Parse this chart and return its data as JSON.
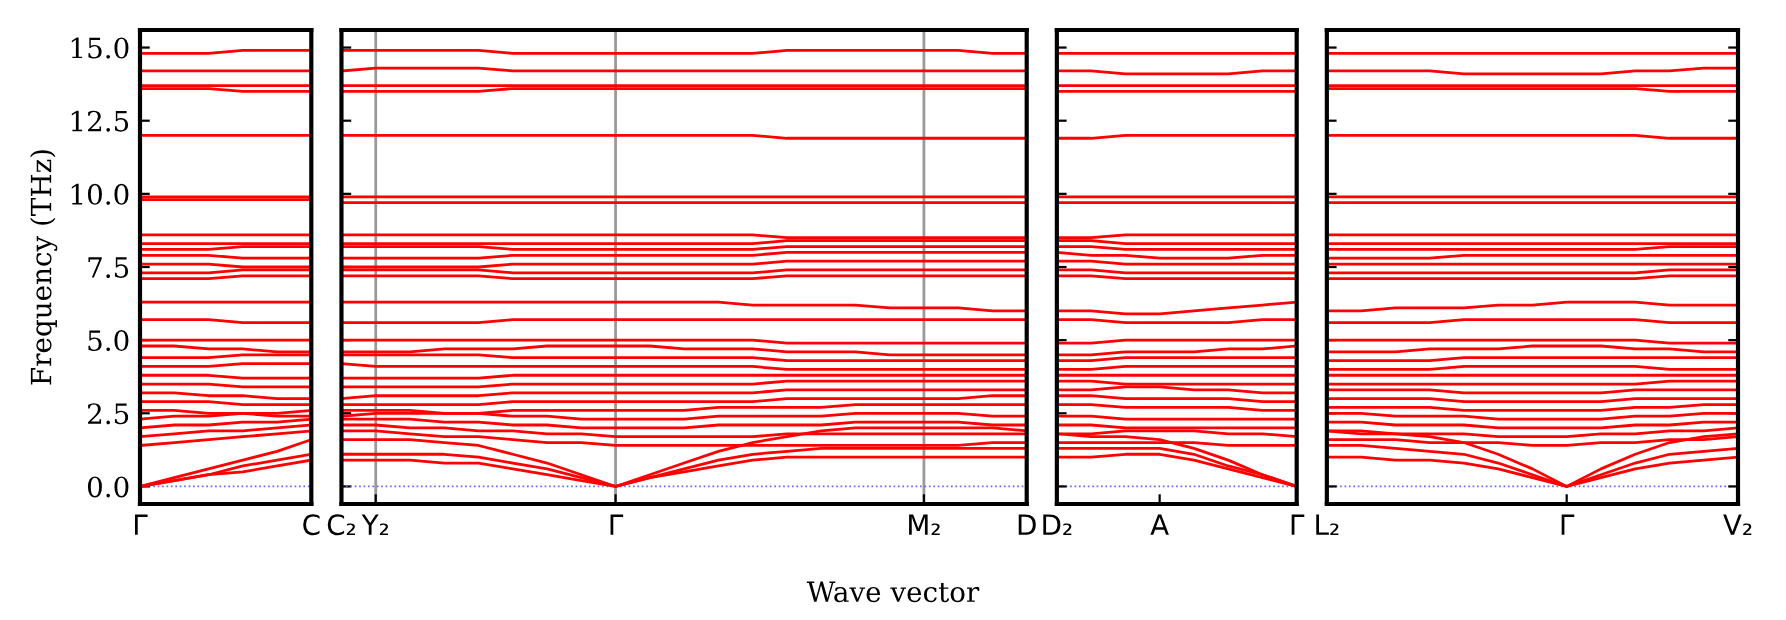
{
  "chart_data": [
    {
      "type": "line",
      "ylabel": "Frequency (THz)",
      "color": "#ff0000",
      "categories": [
        "Γ",
        null,
        null,
        null,
        null,
        "C"
      ],
      "ylim": [
        -0.6,
        15.6
      ],
      "yticks": [
        {
          "value": 0,
          "label": "0.0"
        },
        {
          "value": 2.5,
          "label": "2.5"
        },
        {
          "value": 5,
          "label": "5.0"
        },
        {
          "value": 7.5,
          "label": "7.5"
        },
        {
          "value": 10,
          "label": "10.0"
        },
        {
          "value": 12.5,
          "label": "12.5"
        },
        {
          "value": 15,
          "label": "15.0"
        }
      ],
      "ref_lines": [
        {
          "axis": "y",
          "value": 0,
          "color": "#6666ff",
          "line_style": "dotted"
        }
      ],
      "series": [
        {
          "values": [
            0,
            0.2,
            0.4,
            0.5,
            0.7,
            0.9
          ]
        },
        {
          "values": [
            0,
            0.2,
            0.4,
            0.7,
            0.9,
            1.1
          ]
        },
        {
          "values": [
            0,
            0.3,
            0.6,
            0.9,
            1.2,
            1.6
          ]
        },
        {
          "values": [
            1.4,
            1.5,
            1.6,
            1.7,
            1.8,
            1.9
          ]
        },
        {
          "values": [
            1.7,
            1.8,
            1.9,
            1.9,
            2.0,
            2.1
          ]
        },
        {
          "values": [
            2.0,
            2.1,
            2.1,
            2.2,
            2.2,
            2.3
          ]
        },
        {
          "values": [
            2.3,
            2.4,
            2.4,
            2.5,
            2.5,
            2.6
          ]
        },
        {
          "values": [
            2.6,
            2.6,
            2.5,
            2.5,
            2.4,
            2.4
          ]
        },
        {
          "values": [
            2.9,
            2.9,
            2.9,
            2.8,
            2.8,
            2.8
          ]
        },
        {
          "values": [
            3.2,
            3.2,
            3.1,
            3.1,
            3.0,
            3.0
          ]
        },
        {
          "values": [
            3.5,
            3.5,
            3.5,
            3.4,
            3.4,
            3.4
          ]
        },
        {
          "values": [
            3.8,
            3.8,
            3.8,
            3.7,
            3.7,
            3.7
          ]
        },
        {
          "values": [
            4.1,
            4.1,
            4.1,
            4.2,
            4.2,
            4.2
          ]
        },
        {
          "values": [
            4.4,
            4.4,
            4.4,
            4.5,
            4.5,
            4.5
          ]
        },
        {
          "values": [
            4.8,
            4.8,
            4.7,
            4.7,
            4.6,
            4.6
          ]
        },
        {
          "values": [
            5.0,
            5.0,
            5.0,
            5.0,
            5.0,
            5.0
          ]
        },
        {
          "values": [
            5.7,
            5.7,
            5.7,
            5.6,
            5.6,
            5.6
          ]
        },
        {
          "values": [
            6.3,
            6.3,
            6.3,
            6.3,
            6.3,
            6.3
          ]
        },
        {
          "values": [
            7.1,
            7.1,
            7.1,
            7.2,
            7.2,
            7.2
          ]
        },
        {
          "values": [
            7.3,
            7.3,
            7.3,
            7.4,
            7.4,
            7.4
          ]
        },
        {
          "values": [
            7.6,
            7.6,
            7.6,
            7.5,
            7.5,
            7.5
          ]
        },
        {
          "values": [
            7.9,
            7.9,
            7.9,
            7.8,
            7.8,
            7.8
          ]
        },
        {
          "values": [
            8.1,
            8.1,
            8.1,
            8.2,
            8.2,
            8.2
          ]
        },
        {
          "values": [
            8.3,
            8.3,
            8.3,
            8.3,
            8.3,
            8.3
          ]
        },
        {
          "values": [
            8.6,
            8.6,
            8.6,
            8.6,
            8.6,
            8.6
          ]
        },
        {
          "values": [
            9.8,
            9.8,
            9.8,
            9.8,
            9.8,
            9.8
          ]
        },
        {
          "values": [
            9.9,
            9.9,
            9.9,
            9.9,
            9.9,
            9.9
          ]
        },
        {
          "values": [
            12.0,
            12.0,
            12.0,
            12.0,
            12.0,
            12.0
          ]
        },
        {
          "values": [
            13.6,
            13.6,
            13.6,
            13.5,
            13.5,
            13.5
          ]
        },
        {
          "values": [
            13.7,
            13.7,
            13.7,
            13.7,
            13.7,
            13.7
          ]
        },
        {
          "values": [
            14.2,
            14.2,
            14.2,
            14.2,
            14.2,
            14.2
          ]
        },
        {
          "values": [
            14.8,
            14.8,
            14.8,
            14.9,
            14.9,
            14.9
          ]
        }
      ]
    },
    {
      "type": "line",
      "xlabel": "Wave vector",
      "color": "#ff0000",
      "grid": "x",
      "tick_labels": "x",
      "categories": [
        "C₂",
        "Y₂",
        null,
        null,
        null,
        null,
        null,
        null,
        "Γ",
        null,
        null,
        null,
        null,
        null,
        null,
        null,
        null,
        "M₂",
        null,
        null,
        "D"
      ],
      "ylim": [
        -0.6,
        15.6
      ],
      "ref_lines": [
        {
          "axis": "y",
          "value": 0,
          "color": "#6666ff",
          "line_style": "dotted"
        }
      ],
      "series": [
        {
          "values": [
            0.9,
            0.9,
            0.9,
            0.8,
            0.8,
            0.6,
            0.4,
            0.2,
            0,
            0.3,
            0.5,
            0.7,
            0.9,
            1.0,
            1.0,
            1.0,
            1.0,
            1.0,
            1.0,
            1.0,
            1.0
          ]
        },
        {
          "values": [
            1.1,
            1.1,
            1.1,
            1.1,
            1.0,
            0.8,
            0.6,
            0.3,
            0,
            0.3,
            0.6,
            0.9,
            1.1,
            1.2,
            1.3,
            1.3,
            1.3,
            1.3,
            1.3,
            1.3,
            1.3
          ]
        },
        {
          "values": [
            1.6,
            1.6,
            1.6,
            1.5,
            1.4,
            1.1,
            0.8,
            0.4,
            0,
            0.4,
            0.8,
            1.2,
            1.5,
            1.7,
            1.9,
            2.0,
            2.0,
            2.0,
            2.0,
            2.0,
            1.9
          ]
        },
        {
          "values": [
            1.9,
            1.9,
            1.8,
            1.7,
            1.7,
            1.6,
            1.5,
            1.5,
            1.4,
            1.4,
            1.4,
            1.4,
            1.4,
            1.4,
            1.4,
            1.4,
            1.4,
            1.4,
            1.4,
            1.5,
            1.5
          ]
        },
        {
          "values": [
            2.1,
            2.1,
            2.0,
            2.0,
            1.9,
            1.9,
            1.8,
            1.8,
            1.7,
            1.7,
            1.7,
            1.7,
            1.7,
            1.8,
            1.8,
            1.8,
            1.8,
            1.8,
            1.8,
            1.8,
            1.8
          ]
        },
        {
          "values": [
            2.3,
            2.3,
            2.3,
            2.2,
            2.2,
            2.1,
            2.1,
            2.0,
            2.0,
            2.0,
            2.0,
            2.1,
            2.1,
            2.1,
            2.1,
            2.2,
            2.2,
            2.2,
            2.2,
            2.1,
            2.1
          ]
        },
        {
          "values": [
            2.6,
            2.6,
            2.6,
            2.5,
            2.5,
            2.4,
            2.4,
            2.3,
            2.3,
            2.3,
            2.3,
            2.4,
            2.4,
            2.4,
            2.4,
            2.5,
            2.5,
            2.5,
            2.5,
            2.4,
            2.4
          ]
        },
        {
          "values": [
            2.4,
            2.5,
            2.5,
            2.5,
            2.5,
            2.6,
            2.6,
            2.6,
            2.6,
            2.6,
            2.6,
            2.7,
            2.7,
            2.7,
            2.7,
            2.8,
            2.8,
            2.8,
            2.8,
            2.8,
            2.8
          ]
        },
        {
          "values": [
            2.8,
            2.8,
            2.8,
            2.8,
            2.8,
            2.9,
            2.9,
            2.9,
            2.9,
            2.9,
            2.9,
            2.9,
            2.9,
            3.0,
            3.0,
            3.0,
            3.0,
            3.0,
            3.0,
            3.1,
            3.1
          ]
        },
        {
          "values": [
            3.0,
            3.1,
            3.1,
            3.1,
            3.1,
            3.2,
            3.2,
            3.2,
            3.2,
            3.2,
            3.2,
            3.2,
            3.2,
            3.3,
            3.3,
            3.3,
            3.3,
            3.3,
            3.3,
            3.3,
            3.3
          ]
        },
        {
          "values": [
            3.4,
            3.4,
            3.4,
            3.4,
            3.4,
            3.5,
            3.5,
            3.5,
            3.5,
            3.5,
            3.5,
            3.5,
            3.5,
            3.6,
            3.6,
            3.6,
            3.6,
            3.6,
            3.6,
            3.6,
            3.6
          ]
        },
        {
          "values": [
            3.7,
            3.7,
            3.7,
            3.7,
            3.7,
            3.8,
            3.8,
            3.8,
            3.8,
            3.8,
            3.8,
            3.8,
            3.8,
            3.8,
            3.8,
            3.8,
            3.8,
            3.8,
            3.8,
            3.8,
            3.8
          ]
        },
        {
          "values": [
            4.2,
            4.1,
            4.1,
            4.1,
            4.1,
            4.1,
            4.1,
            4.1,
            4.1,
            4.1,
            4.1,
            4.1,
            4.1,
            4.0,
            4.0,
            4.0,
            4.0,
            4.0,
            4.0,
            4.0,
            4.0
          ]
        },
        {
          "values": [
            4.5,
            4.5,
            4.5,
            4.5,
            4.5,
            4.4,
            4.4,
            4.4,
            4.4,
            4.4,
            4.4,
            4.4,
            4.4,
            4.3,
            4.3,
            4.3,
            4.3,
            4.3,
            4.3,
            4.3,
            4.3
          ]
        },
        {
          "values": [
            4.6,
            4.6,
            4.6,
            4.7,
            4.7,
            4.7,
            4.8,
            4.8,
            4.8,
            4.8,
            4.7,
            4.7,
            4.7,
            4.6,
            4.6,
            4.6,
            4.5,
            4.5,
            4.5,
            4.5,
            4.5
          ]
        },
        {
          "values": [
            5.0,
            5.0,
            5.0,
            5.0,
            5.0,
            5.0,
            5.0,
            5.0,
            5.0,
            5.0,
            5.0,
            5.0,
            5.0,
            4.9,
            4.9,
            4.9,
            4.9,
            4.9,
            4.9,
            4.9,
            4.9
          ]
        },
        {
          "values": [
            5.6,
            5.6,
            5.6,
            5.6,
            5.6,
            5.7,
            5.7,
            5.7,
            5.7,
            5.7,
            5.7,
            5.7,
            5.7,
            5.7,
            5.7,
            5.7,
            5.7,
            5.7,
            5.7,
            5.7,
            5.7
          ]
        },
        {
          "values": [
            6.3,
            6.3,
            6.3,
            6.3,
            6.3,
            6.3,
            6.3,
            6.3,
            6.3,
            6.3,
            6.3,
            6.3,
            6.2,
            6.2,
            6.2,
            6.2,
            6.1,
            6.1,
            6.1,
            6.0,
            6.0
          ]
        },
        {
          "values": [
            7.2,
            7.2,
            7.2,
            7.2,
            7.2,
            7.1,
            7.1,
            7.1,
            7.1,
            7.1,
            7.1,
            7.1,
            7.1,
            7.2,
            7.2,
            7.2,
            7.2,
            7.2,
            7.2,
            7.2,
            7.2
          ]
        },
        {
          "values": [
            7.4,
            7.4,
            7.4,
            7.4,
            7.4,
            7.3,
            7.3,
            7.3,
            7.3,
            7.3,
            7.3,
            7.3,
            7.3,
            7.4,
            7.4,
            7.4,
            7.4,
            7.4,
            7.4,
            7.4,
            7.4
          ]
        },
        {
          "values": [
            7.5,
            7.5,
            7.5,
            7.5,
            7.5,
            7.6,
            7.6,
            7.6,
            7.6,
            7.6,
            7.6,
            7.6,
            7.6,
            7.7,
            7.7,
            7.7,
            7.7,
            7.7,
            7.7,
            7.7,
            7.7
          ]
        },
        {
          "values": [
            7.8,
            7.8,
            7.8,
            7.8,
            7.8,
            7.9,
            7.9,
            7.9,
            7.9,
            7.9,
            7.9,
            7.9,
            7.9,
            8.0,
            8.0,
            8.0,
            8.0,
            8.0,
            8.0,
            8.0,
            8.0
          ]
        },
        {
          "values": [
            8.2,
            8.2,
            8.2,
            8.2,
            8.2,
            8.1,
            8.1,
            8.1,
            8.1,
            8.1,
            8.1,
            8.1,
            8.1,
            8.2,
            8.2,
            8.2,
            8.2,
            8.2,
            8.2,
            8.2,
            8.2
          ]
        },
        {
          "values": [
            8.3,
            8.3,
            8.3,
            8.3,
            8.3,
            8.3,
            8.3,
            8.3,
            8.3,
            8.3,
            8.3,
            8.3,
            8.3,
            8.4,
            8.4,
            8.4,
            8.4,
            8.4,
            8.4,
            8.4,
            8.4
          ]
        },
        {
          "values": [
            8.6,
            8.6,
            8.6,
            8.6,
            8.6,
            8.6,
            8.6,
            8.6,
            8.6,
            8.6,
            8.6,
            8.6,
            8.6,
            8.5,
            8.5,
            8.5,
            8.5,
            8.5,
            8.5,
            8.5,
            8.5
          ]
        },
        {
          "values": [
            9.7,
            9.7,
            9.7,
            9.7,
            9.7,
            9.7,
            9.7,
            9.7,
            9.7,
            9.7,
            9.7,
            9.7,
            9.7,
            9.7,
            9.7,
            9.7,
            9.7,
            9.7,
            9.7,
            9.7,
            9.7
          ]
        },
        {
          "values": [
            9.9,
            9.9,
            9.9,
            9.9,
            9.9,
            9.9,
            9.9,
            9.9,
            9.9,
            9.9,
            9.9,
            9.9,
            9.9,
            9.9,
            9.9,
            9.9,
            9.9,
            9.9,
            9.9,
            9.9,
            9.9
          ]
        },
        {
          "values": [
            12.0,
            12.0,
            12.0,
            12.0,
            12.0,
            12.0,
            12.0,
            12.0,
            12.0,
            12.0,
            12.0,
            12.0,
            12.0,
            11.9,
            11.9,
            11.9,
            11.9,
            11.9,
            11.9,
            11.9,
            11.9
          ]
        },
        {
          "values": [
            13.5,
            13.5,
            13.5,
            13.5,
            13.5,
            13.6,
            13.6,
            13.6,
            13.6,
            13.6,
            13.6,
            13.6,
            13.6,
            13.6,
            13.6,
            13.6,
            13.6,
            13.6,
            13.6,
            13.6,
            13.6
          ]
        },
        {
          "values": [
            13.7,
            13.7,
            13.7,
            13.7,
            13.7,
            13.7,
            13.7,
            13.7,
            13.7,
            13.7,
            13.7,
            13.7,
            13.7,
            13.7,
            13.7,
            13.7,
            13.7,
            13.7,
            13.7,
            13.7,
            13.7
          ]
        },
        {
          "values": [
            14.2,
            14.3,
            14.3,
            14.3,
            14.3,
            14.2,
            14.2,
            14.2,
            14.2,
            14.2,
            14.2,
            14.2,
            14.2,
            14.2,
            14.2,
            14.2,
            14.2,
            14.2,
            14.2,
            14.2,
            14.2
          ]
        },
        {
          "values": [
            14.9,
            14.9,
            14.9,
            14.9,
            14.9,
            14.8,
            14.8,
            14.8,
            14.8,
            14.8,
            14.8,
            14.8,
            14.8,
            14.9,
            14.9,
            14.9,
            14.9,
            14.9,
            14.9,
            14.8,
            14.8
          ]
        }
      ]
    },
    {
      "type": "line",
      "color": "#ff0000",
      "tick_labels": "x",
      "categories": [
        "D₂",
        null,
        null,
        "A",
        null,
        null,
        null,
        "Γ"
      ],
      "ylim": [
        -0.6,
        15.6
      ],
      "ref_lines": [
        {
          "axis": "y",
          "value": 0,
          "color": "#6666ff",
          "line_style": "dotted"
        }
      ],
      "series": [
        {
          "values": [
            1.0,
            1.0,
            1.1,
            1.1,
            0.9,
            0.6,
            0.3,
            0
          ]
        },
        {
          "values": [
            1.3,
            1.3,
            1.3,
            1.3,
            1.1,
            0.7,
            0.4,
            0
          ]
        },
        {
          "values": [
            1.8,
            1.7,
            1.7,
            1.6,
            1.3,
            0.9,
            0.4,
            0
          ]
        },
        {
          "values": [
            1.5,
            1.5,
            1.5,
            1.5,
            1.5,
            1.4,
            1.4,
            1.4
          ]
        },
        {
          "values": [
            1.8,
            1.8,
            1.9,
            1.9,
            1.9,
            1.8,
            1.8,
            1.7
          ]
        },
        {
          "values": [
            2.1,
            2.1,
            2.0,
            2.0,
            2.0,
            2.0,
            2.0,
            2.0
          ]
        },
        {
          "values": [
            2.4,
            2.4,
            2.3,
            2.3,
            2.3,
            2.3,
            2.3,
            2.3
          ]
        },
        {
          "values": [
            2.8,
            2.8,
            2.7,
            2.7,
            2.7,
            2.7,
            2.6,
            2.6
          ]
        },
        {
          "values": [
            3.1,
            3.1,
            3.0,
            3.0,
            3.0,
            3.0,
            2.9,
            2.9
          ]
        },
        {
          "values": [
            3.3,
            3.3,
            3.4,
            3.4,
            3.3,
            3.3,
            3.2,
            3.2
          ]
        },
        {
          "values": [
            3.6,
            3.6,
            3.5,
            3.5,
            3.5,
            3.5,
            3.5,
            3.5
          ]
        },
        {
          "values": [
            3.8,
            3.8,
            3.8,
            3.8,
            3.8,
            3.8,
            3.8,
            3.8
          ]
        },
        {
          "values": [
            4.0,
            4.0,
            4.1,
            4.1,
            4.1,
            4.1,
            4.1,
            4.1
          ]
        },
        {
          "values": [
            4.3,
            4.3,
            4.4,
            4.4,
            4.4,
            4.4,
            4.4,
            4.4
          ]
        },
        {
          "values": [
            4.5,
            4.5,
            4.6,
            4.6,
            4.6,
            4.7,
            4.7,
            4.8
          ]
        },
        {
          "values": [
            4.9,
            4.9,
            5.0,
            5.0,
            5.0,
            5.0,
            5.0,
            5.0
          ]
        },
        {
          "values": [
            5.7,
            5.7,
            5.6,
            5.6,
            5.6,
            5.6,
            5.7,
            5.7
          ]
        },
        {
          "values": [
            6.0,
            6.0,
            5.9,
            5.9,
            6.0,
            6.1,
            6.2,
            6.3
          ]
        },
        {
          "values": [
            7.2,
            7.2,
            7.1,
            7.1,
            7.1,
            7.1,
            7.1,
            7.1
          ]
        },
        {
          "values": [
            7.4,
            7.4,
            7.3,
            7.3,
            7.3,
            7.3,
            7.3,
            7.3
          ]
        },
        {
          "values": [
            7.7,
            7.7,
            7.6,
            7.6,
            7.6,
            7.6,
            7.6,
            7.6
          ]
        },
        {
          "values": [
            8.0,
            7.9,
            7.9,
            7.8,
            7.8,
            7.8,
            7.9,
            7.9
          ]
        },
        {
          "values": [
            8.2,
            8.2,
            8.1,
            8.1,
            8.1,
            8.1,
            8.1,
            8.1
          ]
        },
        {
          "values": [
            8.4,
            8.4,
            8.3,
            8.3,
            8.3,
            8.3,
            8.3,
            8.3
          ]
        },
        {
          "values": [
            8.5,
            8.5,
            8.6,
            8.6,
            8.6,
            8.6,
            8.6,
            8.6
          ]
        },
        {
          "values": [
            9.7,
            9.7,
            9.7,
            9.7,
            9.7,
            9.7,
            9.7,
            9.7
          ]
        },
        {
          "values": [
            9.9,
            9.9,
            9.9,
            9.9,
            9.9,
            9.9,
            9.9,
            9.9
          ]
        },
        {
          "values": [
            11.9,
            11.9,
            12.0,
            12.0,
            12.0,
            12.0,
            12.0,
            12.0
          ]
        },
        {
          "values": [
            13.5,
            13.5,
            13.5,
            13.5,
            13.5,
            13.5,
            13.5,
            13.5
          ]
        },
        {
          "values": [
            13.7,
            13.7,
            13.7,
            13.7,
            13.7,
            13.7,
            13.7,
            13.7
          ]
        },
        {
          "values": [
            14.2,
            14.2,
            14.1,
            14.1,
            14.1,
            14.1,
            14.2,
            14.2
          ]
        },
        {
          "values": [
            14.8,
            14.8,
            14.8,
            14.8,
            14.8,
            14.8,
            14.8,
            14.8
          ]
        }
      ]
    },
    {
      "type": "line",
      "color": "#ff0000",
      "tick_labels": "x",
      "categories": [
        "L₂",
        null,
        null,
        null,
        null,
        null,
        null,
        "Γ",
        null,
        null,
        null,
        null,
        "V₂"
      ],
      "ylim": [
        -0.6,
        15.6
      ],
      "ref_lines": [
        {
          "axis": "y",
          "value": 0,
          "color": "#6666ff",
          "line_style": "dotted"
        }
      ],
      "series": [
        {
          "values": [
            1.0,
            1.0,
            0.9,
            0.9,
            0.8,
            0.6,
            0.3,
            0,
            0.3,
            0.6,
            0.8,
            0.9,
            1.0
          ]
        },
        {
          "values": [
            1.4,
            1.4,
            1.3,
            1.2,
            1.1,
            0.8,
            0.4,
            0,
            0.4,
            0.8,
            1.1,
            1.2,
            1.3
          ]
        },
        {
          "values": [
            1.9,
            1.8,
            1.8,
            1.7,
            1.5,
            1.1,
            0.6,
            0,
            0.6,
            1.1,
            1.5,
            1.7,
            1.8
          ]
        },
        {
          "values": [
            1.6,
            1.6,
            1.6,
            1.5,
            1.5,
            1.5,
            1.4,
            1.4,
            1.5,
            1.5,
            1.6,
            1.6,
            1.7
          ]
        },
        {
          "values": [
            1.9,
            1.9,
            1.8,
            1.8,
            1.8,
            1.7,
            1.7,
            1.7,
            1.8,
            1.8,
            1.9,
            1.9,
            2.0
          ]
        },
        {
          "values": [
            2.2,
            2.2,
            2.1,
            2.1,
            2.1,
            2.0,
            2.0,
            2.0,
            2.0,
            2.1,
            2.1,
            2.2,
            2.2
          ]
        },
        {
          "values": [
            2.5,
            2.5,
            2.4,
            2.4,
            2.4,
            2.3,
            2.3,
            2.3,
            2.3,
            2.4,
            2.4,
            2.5,
            2.5
          ]
        },
        {
          "values": [
            2.7,
            2.7,
            2.7,
            2.7,
            2.6,
            2.6,
            2.6,
            2.6,
            2.6,
            2.7,
            2.7,
            2.8,
            2.8
          ]
        },
        {
          "values": [
            3.0,
            3.0,
            3.0,
            3.0,
            2.9,
            2.9,
            2.9,
            2.9,
            2.9,
            3.0,
            3.0,
            3.0,
            3.0
          ]
        },
        {
          "values": [
            3.3,
            3.3,
            3.3,
            3.3,
            3.2,
            3.2,
            3.2,
            3.2,
            3.2,
            3.3,
            3.3,
            3.3,
            3.3
          ]
        },
        {
          "values": [
            3.5,
            3.5,
            3.5,
            3.5,
            3.5,
            3.5,
            3.5,
            3.5,
            3.5,
            3.5,
            3.6,
            3.6,
            3.6
          ]
        },
        {
          "values": [
            3.8,
            3.8,
            3.8,
            3.8,
            3.8,
            3.8,
            3.8,
            3.8,
            3.8,
            3.8,
            3.8,
            3.8,
            3.8
          ]
        },
        {
          "values": [
            4.0,
            4.0,
            4.0,
            4.0,
            4.1,
            4.1,
            4.1,
            4.1,
            4.1,
            4.1,
            4.0,
            4.0,
            4.0
          ]
        },
        {
          "values": [
            4.3,
            4.3,
            4.3,
            4.3,
            4.4,
            4.4,
            4.4,
            4.4,
            4.4,
            4.4,
            4.4,
            4.4,
            4.4
          ]
        },
        {
          "values": [
            4.6,
            4.6,
            4.6,
            4.7,
            4.7,
            4.7,
            4.8,
            4.8,
            4.8,
            4.7,
            4.7,
            4.6,
            4.6
          ]
        },
        {
          "values": [
            5.0,
            5.0,
            5.0,
            5.0,
            5.0,
            5.0,
            5.0,
            5.0,
            5.0,
            5.0,
            4.9,
            4.9,
            4.9
          ]
        },
        {
          "values": [
            5.6,
            5.6,
            5.6,
            5.6,
            5.7,
            5.7,
            5.7,
            5.7,
            5.7,
            5.7,
            5.6,
            5.6,
            5.6
          ]
        },
        {
          "values": [
            6.0,
            6.0,
            6.1,
            6.1,
            6.1,
            6.2,
            6.2,
            6.3,
            6.3,
            6.3,
            6.2,
            6.2,
            6.2
          ]
        },
        {
          "values": [
            7.1,
            7.1,
            7.1,
            7.1,
            7.1,
            7.1,
            7.1,
            7.1,
            7.1,
            7.1,
            7.2,
            7.2,
            7.2
          ]
        },
        {
          "values": [
            7.3,
            7.3,
            7.3,
            7.3,
            7.3,
            7.3,
            7.3,
            7.3,
            7.3,
            7.3,
            7.4,
            7.4,
            7.4
          ]
        },
        {
          "values": [
            7.6,
            7.6,
            7.6,
            7.6,
            7.6,
            7.6,
            7.6,
            7.6,
            7.6,
            7.6,
            7.6,
            7.6,
            7.6
          ]
        },
        {
          "values": [
            7.8,
            7.8,
            7.8,
            7.8,
            7.9,
            7.9,
            7.9,
            7.9,
            7.9,
            7.9,
            7.9,
            7.9,
            7.9
          ]
        },
        {
          "values": [
            8.1,
            8.1,
            8.1,
            8.1,
            8.1,
            8.1,
            8.1,
            8.1,
            8.1,
            8.1,
            8.2,
            8.2,
            8.2
          ]
        },
        {
          "values": [
            8.3,
            8.3,
            8.3,
            8.3,
            8.3,
            8.3,
            8.3,
            8.3,
            8.3,
            8.3,
            8.3,
            8.3,
            8.3
          ]
        },
        {
          "values": [
            8.6,
            8.6,
            8.6,
            8.6,
            8.6,
            8.6,
            8.6,
            8.6,
            8.6,
            8.6,
            8.6,
            8.6,
            8.6
          ]
        },
        {
          "values": [
            9.7,
            9.7,
            9.7,
            9.7,
            9.7,
            9.7,
            9.7,
            9.7,
            9.7,
            9.7,
            9.7,
            9.7,
            9.7
          ]
        },
        {
          "values": [
            9.9,
            9.9,
            9.9,
            9.9,
            9.9,
            9.9,
            9.9,
            9.9,
            9.9,
            9.9,
            9.9,
            9.9,
            9.9
          ]
        },
        {
          "values": [
            12.0,
            12.0,
            12.0,
            12.0,
            12.0,
            12.0,
            12.0,
            12.0,
            12.0,
            12.0,
            11.9,
            11.9,
            11.9
          ]
        },
        {
          "values": [
            13.6,
            13.6,
            13.6,
            13.6,
            13.6,
            13.6,
            13.6,
            13.6,
            13.6,
            13.6,
            13.5,
            13.5,
            13.5
          ]
        },
        {
          "values": [
            13.7,
            13.7,
            13.7,
            13.7,
            13.7,
            13.7,
            13.7,
            13.7,
            13.7,
            13.7,
            13.7,
            13.7,
            13.7
          ]
        },
        {
          "values": [
            14.2,
            14.2,
            14.2,
            14.2,
            14.1,
            14.1,
            14.1,
            14.1,
            14.1,
            14.2,
            14.2,
            14.3,
            14.3
          ]
        },
        {
          "values": [
            14.8,
            14.8,
            14.8,
            14.8,
            14.8,
            14.8,
            14.8,
            14.8,
            14.8,
            14.8,
            14.8,
            14.8,
            14.8
          ]
        }
      ]
    }
  ]
}
